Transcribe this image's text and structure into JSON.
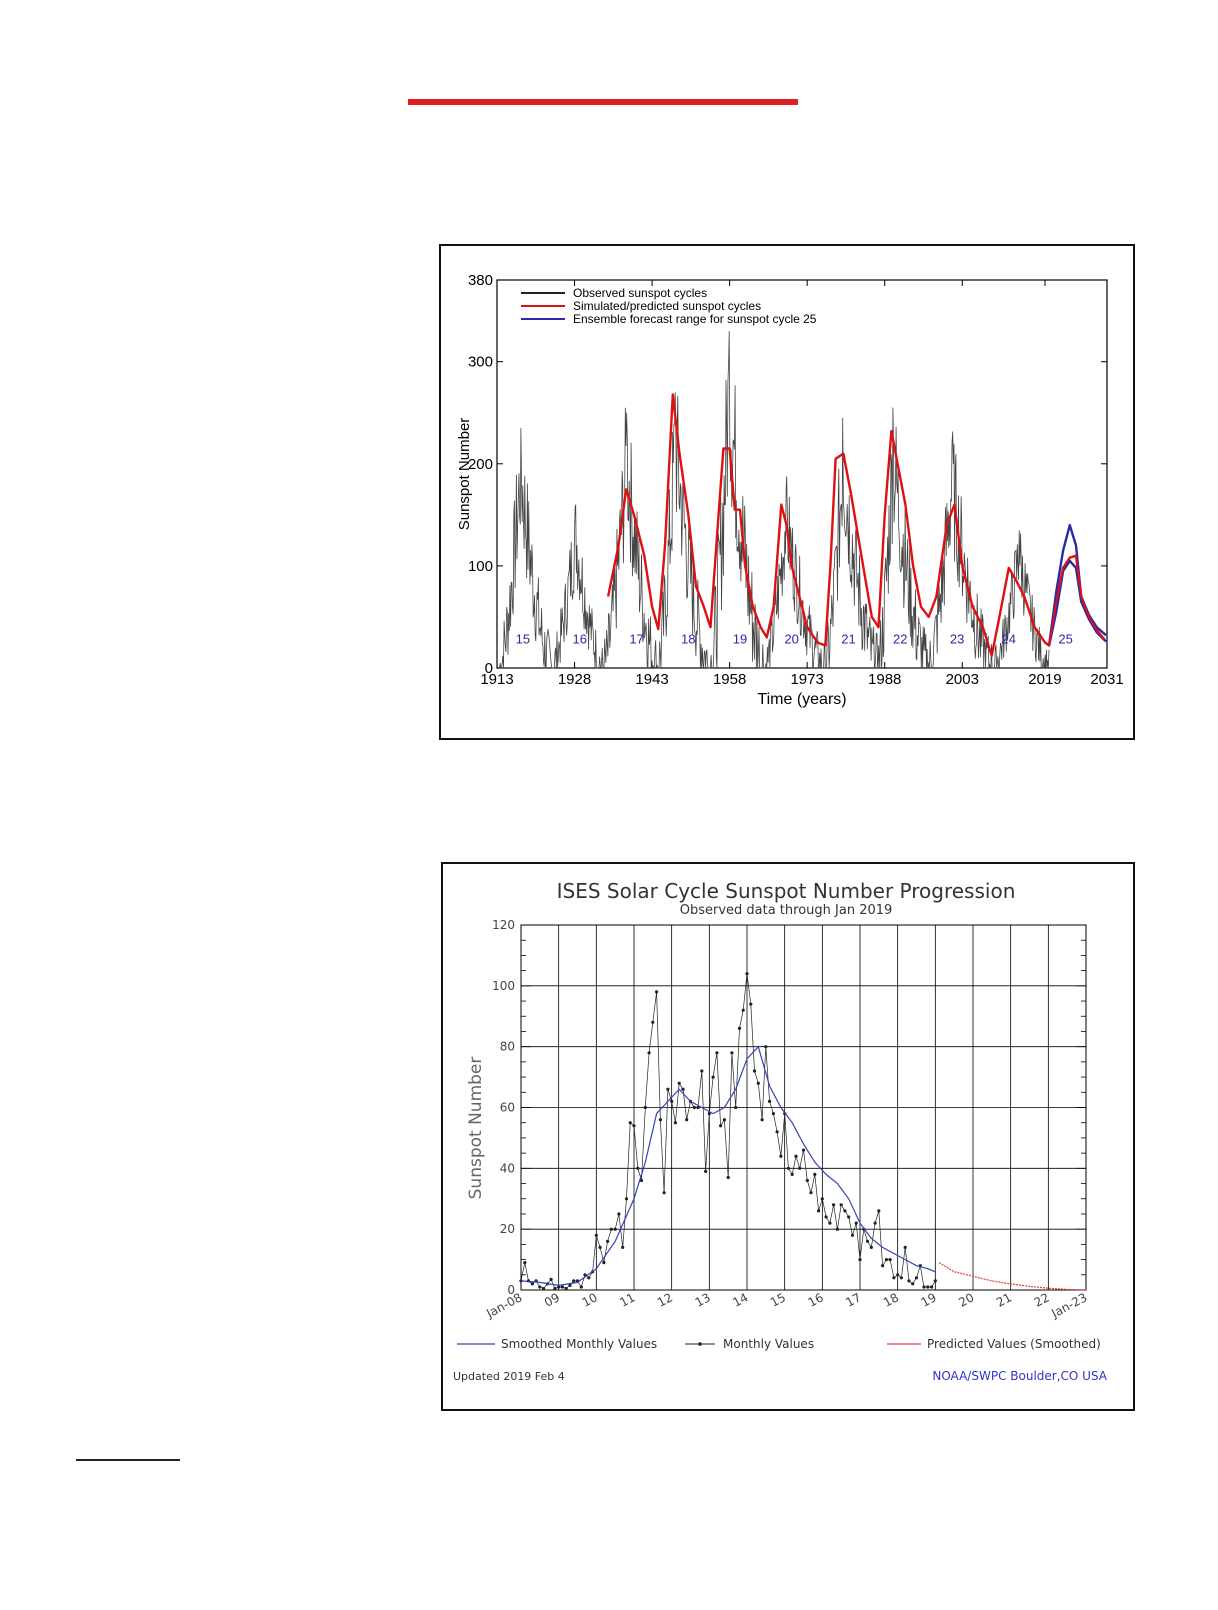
{
  "colors": {
    "accent_rule": "#e02020",
    "observed": "#222222",
    "simulated": "#dd1111",
    "ensemble": "#2a2aa8",
    "smoothed": "#3344bb",
    "monthly": "#222222",
    "predicted": "#e04040",
    "credit": "#3333cc"
  },
  "chart_data": [
    {
      "type": "line",
      "title": "",
      "xlabel": "Time (years)",
      "ylabel": "Sunspot Number",
      "xlim": [
        1913,
        2031
      ],
      "ylim": [
        0,
        380
      ],
      "x_ticks": [
        "1913",
        "1928",
        "1943",
        "1958",
        "1973",
        "1988",
        "2003",
        "2019",
        "2031"
      ],
      "y_ticks": [
        "0",
        "100",
        "200",
        "300",
        "380"
      ],
      "grid": false,
      "legend_position": "top-left",
      "legend": [
        {
          "label": "Observed sunspot cycles",
          "color": "#222222"
        },
        {
          "label": "Simulated/predicted sunspot cycles",
          "color": "#dd1111"
        },
        {
          "label": "Ensemble forecast range for sunspot cycle 25",
          "color": "#2a2aa8"
        }
      ],
      "cycle_labels": [
        {
          "label": "15",
          "year": 1918
        },
        {
          "label": "16",
          "year": 1929
        },
        {
          "label": "17",
          "year": 1940
        },
        {
          "label": "18",
          "year": 1950
        },
        {
          "label": "19",
          "year": 1960
        },
        {
          "label": "20",
          "year": 1970
        },
        {
          "label": "21",
          "year": 1981
        },
        {
          "label": "22",
          "year": 1991
        },
        {
          "label": "23",
          "year": 2002
        },
        {
          "label": "24",
          "year": 2012
        },
        {
          "label": "25",
          "year": 2023
        }
      ],
      "cycles": [
        {
          "start": 1913.5,
          "peak_year": 1917.6,
          "peak": 235,
          "end": 1923.6
        },
        {
          "start": 1923.6,
          "peak_year": 1928.2,
          "peak": 160,
          "end": 1933.7
        },
        {
          "start": 1933.7,
          "peak_year": 1938.1,
          "peak": 250,
          "end": 1944.1
        },
        {
          "start": 1944.1,
          "peak_year": 1947.5,
          "peak": 270,
          "end": 1954.3
        },
        {
          "start": 1954.3,
          "peak_year": 1957.9,
          "peak": 330,
          "end": 1964.8
        },
        {
          "start": 1964.8,
          "peak_year": 1968.9,
          "peak": 175,
          "end": 1976.5
        },
        {
          "start": 1976.5,
          "peak_year": 1979.9,
          "peak": 245,
          "end": 1986.7
        },
        {
          "start": 1986.7,
          "peak_year": 1989.6,
          "peak": 255,
          "end": 1996.4
        },
        {
          "start": 1996.4,
          "peak_year": 2001.0,
          "peak": 220,
          "end": 2008.9
        },
        {
          "start": 2008.9,
          "peak_year": 2014.0,
          "peak": 135,
          "end": 2019.9
        }
      ],
      "series": [
        {
          "name": "Simulated/predicted sunspot cycles",
          "x": [
            1934.5,
            1936.5,
            1938,
            1939.5,
            1941.5,
            1943,
            1944.2,
            1945.5,
            1947,
            1948.3,
            1950,
            1951.5,
            1953,
            1954.3,
            1955.5,
            1956.8,
            1958,
            1959,
            1960,
            1961,
            1962.5,
            1964,
            1965.2,
            1966.5,
            1968,
            1969,
            1970,
            1971.5,
            1973,
            1975,
            1976.5,
            1977.5,
            1978.5,
            1980,
            1981.5,
            1983.5,
            1985.5,
            1986.8,
            1988,
            1989.3,
            1990.5,
            1992,
            1993.5,
            1995,
            1996.5,
            1998,
            2000,
            2001.5,
            2003,
            2005,
            2007,
            2008.7,
            2010,
            2012,
            2013.5,
            2015,
            2017,
            2019,
            2019.8,
            2021,
            2022.5,
            2023.8,
            2025,
            2026,
            2027.5,
            2029,
            2030.5
          ],
          "y": [
            70,
            120,
            175,
            150,
            110,
            60,
            38,
            120,
            268,
            210,
            150,
            80,
            60,
            40,
            125,
            215,
            215,
            155,
            155,
            100,
            60,
            40,
            30,
            60,
            160,
            140,
            100,
            70,
            40,
            25,
            22,
            100,
            205,
            210,
            170,
            110,
            50,
            40,
            150,
            232,
            200,
            160,
            100,
            60,
            50,
            70,
            140,
            160,
            100,
            60,
            40,
            12,
            45,
            98,
            85,
            70,
            40,
            25,
            22,
            60,
            98,
            108,
            110,
            70,
            50,
            37,
            28
          ]
        },
        {
          "name": "Ensemble forecast range for sunspot cycle 25",
          "x": [
            2019.8,
            2021.2,
            2022.5,
            2023.8,
            2025,
            2026,
            2027.5,
            2029,
            2030.8
          ],
          "y": [
            22,
            75,
            115,
            140,
            120,
            70,
            52,
            40,
            32
          ]
        },
        {
          "name": "",
          "x": [
            2019.8,
            2021.2,
            2022.5,
            2023.8,
            2025,
            2026,
            2027.5,
            2029,
            2030.8
          ],
          "y": [
            22,
            55,
            95,
            105,
            98,
            65,
            48,
            35,
            26
          ]
        }
      ]
    },
    {
      "type": "line",
      "title": "ISES Solar Cycle Sunspot Number Progression",
      "subtitle": "Observed data through Jan 2019",
      "xlabel": "",
      "ylabel": "Sunspot Number",
      "xlim": [
        "Jan-08",
        "Jan-23"
      ],
      "ylim": [
        0,
        120
      ],
      "x_ticks": [
        "Jan-08",
        "09",
        "10",
        "11",
        "12",
        "13",
        "14",
        "15",
        "16",
        "17",
        "18",
        "19",
        "20",
        "21",
        "22",
        "Jan-23"
      ],
      "y_ticks": [
        "0",
        "20",
        "40",
        "60",
        "80",
        "100",
        "120"
      ],
      "grid": true,
      "legend_position": "bottom",
      "legend": [
        {
          "label": "Smoothed Monthly Values",
          "color": "#3344bb"
        },
        {
          "label": "Monthly Values",
          "color": "#222222"
        },
        {
          "label": "Predicted Values (Smoothed)",
          "color": "#e04040"
        }
      ],
      "footer_left": "Updated 2019 Feb  4",
      "footer_right": "NOAA/SWPC Boulder,CO USA",
      "series": [
        {
          "name": "Smoothed Monthly Values",
          "x": [
            2008.0,
            2008.5,
            2009.0,
            2009.5,
            2010.0,
            2010.5,
            2011.0,
            2011.3,
            2011.6,
            2011.9,
            2012.2,
            2012.5,
            2012.8,
            2013.1,
            2013.4,
            2013.7,
            2014.0,
            2014.3,
            2014.6,
            2014.9,
            2015.2,
            2015.5,
            2015.8,
            2016.1,
            2016.4,
            2016.7,
            2017.0,
            2017.3,
            2017.6,
            2017.9,
            2018.2,
            2018.5,
            2018.8,
            2019.0
          ],
          "y": [
            3,
            2.5,
            1.5,
            2.5,
            7,
            16,
            30,
            42,
            58,
            62,
            66,
            62,
            60,
            58,
            60,
            66,
            76,
            80,
            67,
            60,
            55,
            48,
            42,
            38,
            35,
            30,
            22,
            17,
            14,
            12,
            10,
            8,
            7,
            6
          ]
        },
        {
          "name": "Monthly Values",
          "x": [
            2008.0,
            2008.1,
            2008.2,
            2008.3,
            2008.4,
            2008.5,
            2008.6,
            2008.7,
            2008.8,
            2008.9,
            2009.0,
            2009.1,
            2009.2,
            2009.3,
            2009.4,
            2009.5,
            2009.6,
            2009.7,
            2009.8,
            2009.9,
            2010.0,
            2010.1,
            2010.2,
            2010.3,
            2010.4,
            2010.5,
            2010.6,
            2010.7,
            2010.8,
            2010.9,
            2011.0,
            2011.1,
            2011.2,
            2011.3,
            2011.4,
            2011.5,
            2011.6,
            2011.7,
            2011.8,
            2011.9,
            2012.0,
            2012.1,
            2012.2,
            2012.3,
            2012.4,
            2012.5,
            2012.6,
            2012.7,
            2012.8,
            2012.9,
            2013.0,
            2013.1,
            2013.2,
            2013.3,
            2013.4,
            2013.5,
            2013.6,
            2013.7,
            2013.8,
            2013.9,
            2014.0,
            2014.1,
            2014.2,
            2014.3,
            2014.4,
            2014.5,
            2014.6,
            2014.7,
            2014.8,
            2014.9,
            2015.0,
            2015.1,
            2015.2,
            2015.3,
            2015.4,
            2015.5,
            2015.6,
            2015.7,
            2015.8,
            2015.9,
            2016.0,
            2016.1,
            2016.2,
            2016.3,
            2016.4,
            2016.5,
            2016.6,
            2016.7,
            2016.8,
            2016.9,
            2017.0,
            2017.1,
            2017.2,
            2017.3,
            2017.4,
            2017.5,
            2017.6,
            2017.7,
            2017.8,
            2017.9,
            2018.0,
            2018.1,
            2018.2,
            2018.3,
            2018.4,
            2018.5,
            2018.6,
            2018.7,
            2018.8,
            2018.9,
            2019.0
          ],
          "y": [
            3,
            9,
            3,
            2,
            3,
            1,
            0.5,
            2,
            3.5,
            0.5,
            1,
            1,
            0.5,
            1.5,
            3,
            3,
            1,
            5,
            4,
            6,
            18,
            14,
            9,
            16,
            20,
            20,
            25,
            14,
            30,
            55,
            54,
            40,
            36,
            60,
            78,
            88,
            98,
            56,
            32,
            66,
            62,
            55,
            68,
            66,
            56,
            62,
            60,
            60,
            72,
            39,
            58,
            70,
            78,
            54,
            56,
            37,
            78,
            60,
            86,
            92,
            104,
            94,
            72,
            68,
            56,
            80,
            62,
            58,
            52,
            44,
            58,
            40,
            38,
            44,
            40,
            46,
            36,
            32,
            38,
            26,
            30,
            24,
            22,
            28,
            20,
            28,
            26,
            24,
            18,
            22,
            10,
            20,
            16,
            14,
            22,
            26,
            8,
            10,
            10,
            4,
            5,
            4,
            14,
            3,
            2,
            4,
            8,
            1,
            1,
            1,
            3
          ]
        },
        {
          "name": "Predicted Values (Smoothed)",
          "x": [
            2019.1,
            2019.5,
            2020.0,
            2020.5,
            2021.0,
            2021.5,
            2022.0,
            2022.5,
            2023.0
          ],
          "y": [
            9,
            6,
            4.5,
            3,
            2,
            1.2,
            0.6,
            0.2,
            0
          ]
        }
      ]
    }
  ]
}
